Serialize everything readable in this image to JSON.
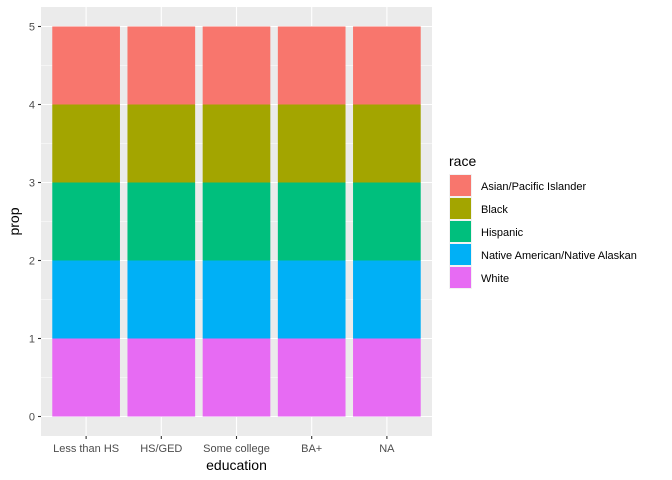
{
  "chart_data": {
    "type": "bar",
    "stacked": true,
    "title": "",
    "xlabel": "education",
    "ylabel": "prop",
    "categories": [
      "Less than HS",
      "HS/GED",
      "Some college",
      "BA+",
      "NA"
    ],
    "ylim": [
      0,
      5
    ],
    "yticks": [
      0,
      1,
      2,
      3,
      4,
      5
    ],
    "grid": true,
    "legend": {
      "title": "race",
      "position": "right"
    },
    "series": [
      {
        "name": "White",
        "color": "#E76BF3",
        "values": [
          1,
          1,
          1,
          1,
          1
        ]
      },
      {
        "name": "Native American/Native Alaskan",
        "color": "#00B0F6",
        "values": [
          1,
          1,
          1,
          1,
          1
        ]
      },
      {
        "name": "Hispanic",
        "color": "#00BF7D",
        "values": [
          1,
          1,
          1,
          1,
          1
        ]
      },
      {
        "name": "Black",
        "color": "#A3A500",
        "values": [
          1,
          1,
          1,
          1,
          1
        ]
      },
      {
        "name": "Asian/Pacific Islander",
        "color": "#F8766D",
        "values": [
          1,
          1,
          1,
          1,
          1
        ]
      }
    ],
    "legend_order": [
      "Asian/Pacific Islander",
      "Black",
      "Hispanic",
      "Native American/Native Alaskan",
      "White"
    ]
  }
}
